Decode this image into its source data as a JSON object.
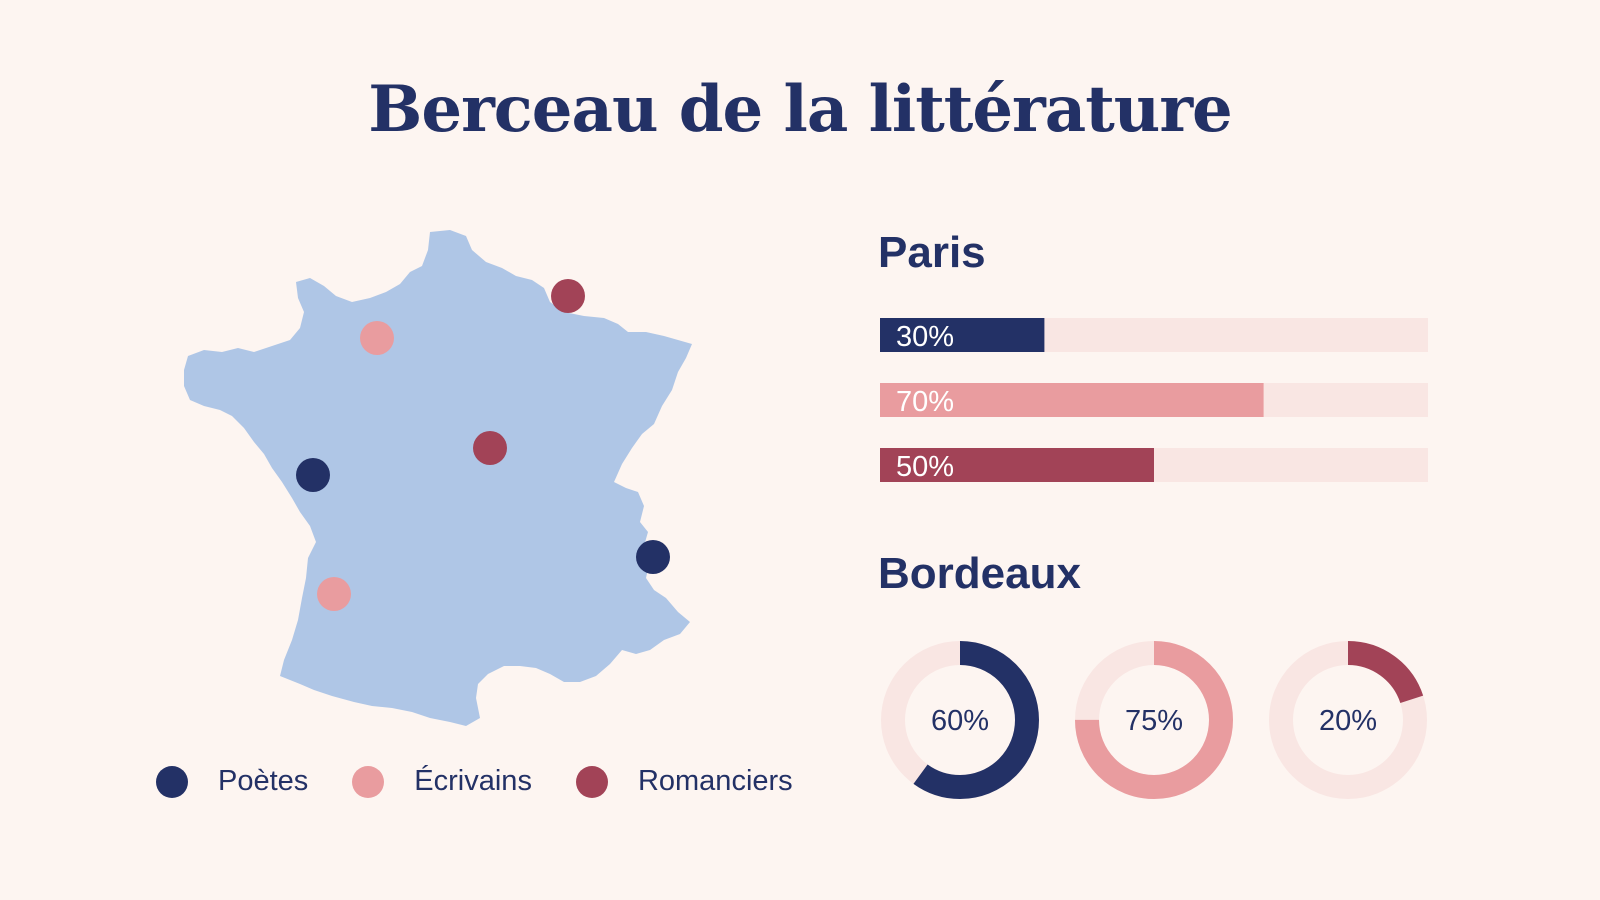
{
  "title": "Berceau de la littérature",
  "colors": {
    "navy": "#233166",
    "pink": "#e99c9f",
    "burgundy": "#a24357",
    "track": "#f9e6e3",
    "map_fill": "#afc6e6",
    "background": "#fdf5f1"
  },
  "legend": [
    {
      "label": "Poètes",
      "color": "#233166"
    },
    {
      "label": "Écrivains",
      "color": "#e99c9f"
    },
    {
      "label": "Romanciers",
      "color": "#a24357"
    }
  ],
  "chart_data": [
    {
      "type": "bar",
      "title": "Paris",
      "orientation": "horizontal",
      "categories": [
        "Poètes",
        "Écrivains",
        "Romanciers"
      ],
      "values": [
        30,
        70,
        50
      ],
      "labels": [
        "30%",
        "70%",
        "50%"
      ],
      "colors": [
        "#233166",
        "#e99c9f",
        "#a24357"
      ],
      "xlim": [
        0,
        100
      ]
    },
    {
      "type": "pie",
      "title": "Bordeaux",
      "style": "donut",
      "categories": [
        "Poètes",
        "Écrivains",
        "Romanciers"
      ],
      "values": [
        60,
        75,
        20
      ],
      "labels": [
        "60%",
        "75%",
        "20%"
      ],
      "colors": [
        "#233166",
        "#e99c9f",
        "#a24357"
      ]
    }
  ]
}
